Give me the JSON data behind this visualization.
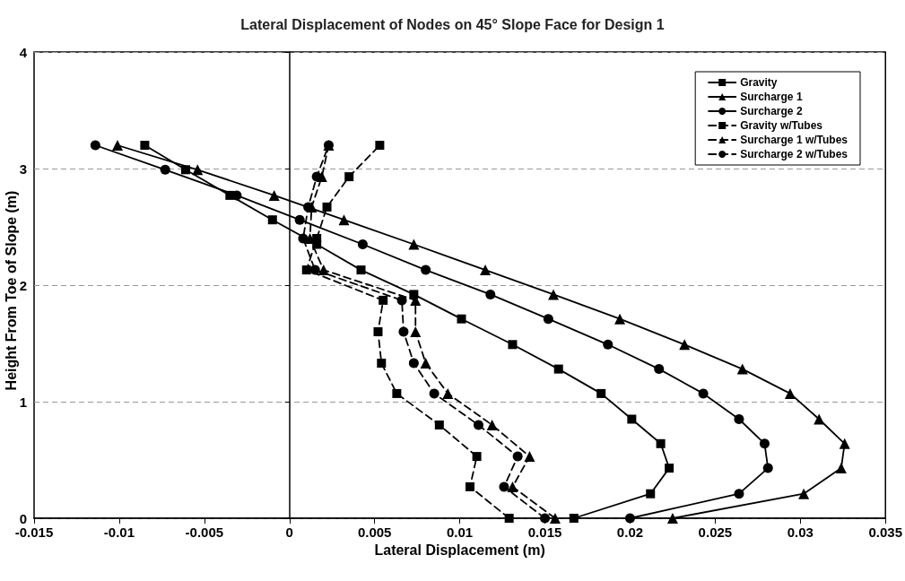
{
  "chart_data": {
    "type": "line",
    "title": "Lateral Displacement of Nodes on 45° Slope Face for Design 1",
    "xlabel": "Lateral Displacement (m)",
    "ylabel": "Height From Toe of Slope (m)",
    "xlim": [
      -0.015,
      0.035
    ],
    "xticks": [
      -0.015,
      -0.01,
      -0.005,
      0,
      0.005,
      0.01,
      0.015,
      0.02,
      0.025,
      0.03,
      0.035
    ],
    "ylim": [
      0,
      4
    ],
    "yticks": [
      0,
      1,
      2,
      3,
      4
    ],
    "grid": "y",
    "legend": "top right",
    "series": [
      {
        "name": "Gravity",
        "color": "#000000",
        "marker": "square",
        "line_style": "solid",
        "x": [
          0.0167,
          0.0212,
          0.0223,
          0.0218,
          0.0201,
          0.0183,
          0.0158,
          0.0131,
          0.0101,
          0.0073,
          0.0042,
          0.0016,
          -0.001,
          -0.0035,
          -0.0061,
          -0.0085
        ],
        "values": [
          0,
          0.21,
          0.43,
          0.64,
          0.85,
          1.07,
          1.28,
          1.49,
          1.71,
          1.92,
          2.13,
          2.35,
          2.56,
          2.77,
          2.99,
          3.2
        ]
      },
      {
        "name": "Surcharge 1",
        "color": "#000000",
        "marker": "triangle",
        "line_style": "solid",
        "x": [
          0.0225,
          0.0302,
          0.0324,
          0.0326,
          0.0311,
          0.0294,
          0.0266,
          0.0232,
          0.0194,
          0.0155,
          0.0115,
          0.0073,
          0.0032,
          -0.0009,
          -0.0054,
          -0.0101
        ],
        "values": [
          0,
          0.21,
          0.43,
          0.64,
          0.85,
          1.07,
          1.28,
          1.49,
          1.71,
          1.92,
          2.13,
          2.35,
          2.56,
          2.77,
          2.99,
          3.2
        ]
      },
      {
        "name": "Surcharge 2",
        "color": "#000000",
        "marker": "circle",
        "line_style": "solid",
        "x": [
          0.02,
          0.0264,
          0.0281,
          0.0279,
          0.0264,
          0.0243,
          0.0217,
          0.0187,
          0.0152,
          0.0118,
          0.008,
          0.0043,
          0.0006,
          -0.0031,
          -0.0073,
          -0.0114
        ],
        "values": [
          0,
          0.21,
          0.43,
          0.64,
          0.85,
          1.07,
          1.28,
          1.49,
          1.71,
          1.92,
          2.13,
          2.35,
          2.56,
          2.77,
          2.99,
          3.2
        ]
      },
      {
        "name": "Gravity w/Tubes",
        "color": "#000000",
        "marker": "square",
        "line_style": "dashed",
        "x": [
          0.0129,
          0.0106,
          0.011,
          0.0088,
          0.0063,
          0.0054,
          0.0052,
          0.0055,
          0.001,
          0.0016,
          0.0022,
          0.0035,
          0.0053
        ],
        "values": [
          0,
          0.27,
          0.53,
          0.8,
          1.07,
          1.33,
          1.6,
          1.87,
          2.13,
          2.4,
          2.67,
          2.93,
          3.2
        ]
      },
      {
        "name": "Surcharge 1 w/Tubes",
        "color": "#000000",
        "marker": "triangle",
        "line_style": "dashed",
        "x": [
          0.0156,
          0.0131,
          0.0141,
          0.0119,
          0.0093,
          0.008,
          0.0074,
          0.0074,
          0.002,
          0.0012,
          0.0013,
          0.0019,
          0.0023
        ],
        "values": [
          0,
          0.27,
          0.53,
          0.8,
          1.07,
          1.33,
          1.6,
          1.87,
          2.13,
          2.4,
          2.67,
          2.93,
          3.2
        ]
      },
      {
        "name": "Surcharge 2 w/Tubes",
        "color": "#000000",
        "marker": "circle",
        "line_style": "dashed",
        "x": [
          0.015,
          0.0126,
          0.0134,
          0.0111,
          0.0085,
          0.0073,
          0.0067,
          0.0066,
          0.0015,
          0.0008,
          0.0011,
          0.0016,
          0.0023
        ],
        "values": [
          0,
          0.27,
          0.53,
          0.8,
          1.07,
          1.33,
          1.6,
          1.87,
          2.13,
          2.4,
          2.67,
          2.93,
          3.2
        ]
      }
    ]
  }
}
